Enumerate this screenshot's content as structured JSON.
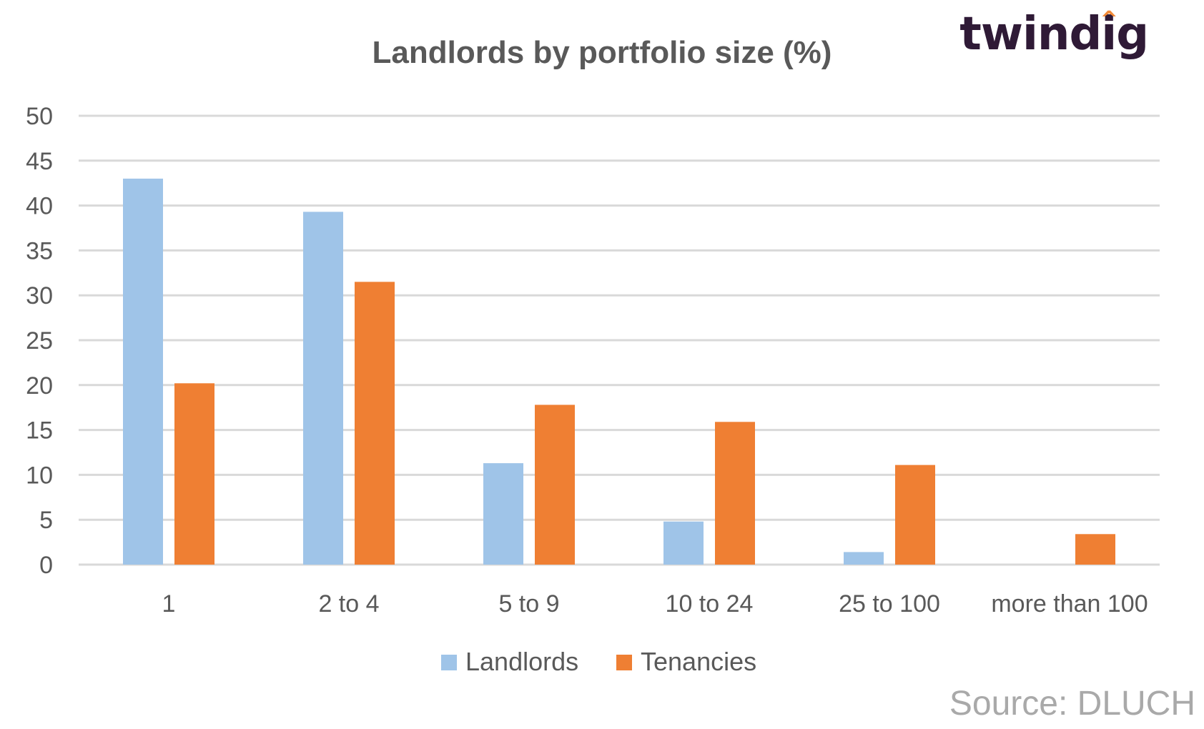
{
  "brand": {
    "text_before": "twind",
    "text_accent": "i",
    "text_after": "g",
    "color": "#2f1a36",
    "accent_color": "#f28a38"
  },
  "source": "Source: DLUCH",
  "chart_data": {
    "type": "bar",
    "title": "Landlords by portfolio size (%)",
    "xlabel": "",
    "ylabel": "",
    "categories": [
      "1",
      "2 to 4",
      "5 to 9",
      "10 to 24",
      "25 to 100",
      "more than 100"
    ],
    "series": [
      {
        "name": "Landlords",
        "color": "#9fc4e8",
        "values": [
          43,
          39.3,
          11.3,
          4.8,
          1.4,
          0
        ]
      },
      {
        "name": "Tenancies",
        "color": "#ef7f33",
        "values": [
          20.2,
          31.5,
          17.8,
          15.9,
          11.1,
          3.4
        ]
      }
    ],
    "ylim": [
      0,
      50
    ],
    "yticks": [
      0,
      5,
      10,
      15,
      20,
      25,
      30,
      35,
      40,
      45,
      50
    ],
    "grid": true,
    "legend_position": "bottom",
    "colors": {
      "title": "#595959",
      "axis_text": "#595959",
      "grid": "#d9d9d9"
    }
  }
}
